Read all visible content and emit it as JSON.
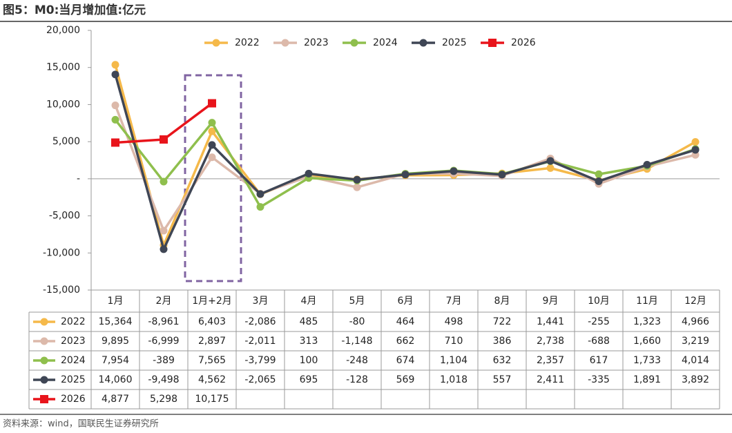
{
  "chart_data": {
    "type": "line",
    "title": "图5：M0:当月增加值:亿元",
    "source": "资料来源：wind，国联民生证券研究所",
    "categories": [
      "1月",
      "2月",
      "1月+2月",
      "3月",
      "4月",
      "5月",
      "6月",
      "7月",
      "8月",
      "9月",
      "10月",
      "11月",
      "12月"
    ],
    "ylim": [
      -15000,
      20000
    ],
    "yticks": [
      {
        "value": -15000,
        "label": "-15,000"
      },
      {
        "value": -10000,
        "label": "-10,000"
      },
      {
        "value": -5000,
        "label": "-5,000"
      },
      {
        "value": 0,
        "label": "-"
      },
      {
        "value": 5000,
        "label": "5,000"
      },
      {
        "value": 10000,
        "label": "10,000"
      },
      {
        "value": 15000,
        "label": "15,000"
      },
      {
        "value": 20000,
        "label": "20,000"
      }
    ],
    "legend": "top",
    "series": [
      {
        "name": "2022",
        "color": "#f5b94a",
        "marker": "circle",
        "values": [
          15364,
          -8961,
          6403,
          -2086,
          485,
          -80,
          464,
          498,
          722,
          1441,
          -255,
          1323,
          4966
        ],
        "value_labels": [
          "15,364",
          "-8,961",
          "6,403",
          "-2,086",
          "485",
          "-80",
          "464",
          "498",
          "722",
          "1,441",
          "-255",
          "1,323",
          "4,966"
        ]
      },
      {
        "name": "2023",
        "color": "#dcb9aa",
        "marker": "circle",
        "values": [
          9895,
          -6999,
          2897,
          -2011,
          313,
          -1148,
          662,
          710,
          386,
          2738,
          -688,
          1660,
          3219
        ],
        "value_labels": [
          "9,895",
          "-6,999",
          "2,897",
          "-2,011",
          "313",
          "-1,148",
          "662",
          "710",
          "386",
          "2,738",
          "-688",
          "1,660",
          "3,219"
        ]
      },
      {
        "name": "2024",
        "color": "#8fbf4d",
        "marker": "circle",
        "values": [
          7954,
          -389,
          7565,
          -3799,
          100,
          -248,
          674,
          1104,
          632,
          2357,
          617,
          1733,
          4014
        ],
        "value_labels": [
          "7,954",
          "-389",
          "7,565",
          "-3,799",
          "100",
          "-248",
          "674",
          "1,104",
          "632",
          "2,357",
          "617",
          "1,733",
          "4,014"
        ]
      },
      {
        "name": "2025",
        "color": "#3f4655",
        "marker": "circle",
        "values": [
          14060,
          -9498,
          4562,
          -2065,
          695,
          -128,
          569,
          1018,
          557,
          2411,
          -335,
          1891,
          3892
        ],
        "value_labels": [
          "14,060",
          "-9,498",
          "4,562",
          "-2,065",
          "695",
          "-128",
          "569",
          "1,018",
          "557",
          "2,411",
          "-335",
          "1,891",
          "3,892"
        ]
      },
      {
        "name": "2026",
        "color": "#e8141b",
        "marker": "square",
        "values": [
          4877,
          5298,
          10175,
          null,
          null,
          null,
          null,
          null,
          null,
          null,
          null,
          null,
          null
        ],
        "value_labels": [
          "4,877",
          "5,298",
          "10,175",
          null,
          null,
          null,
          null,
          null,
          null,
          null,
          null,
          null,
          null
        ]
      }
    ]
  }
}
